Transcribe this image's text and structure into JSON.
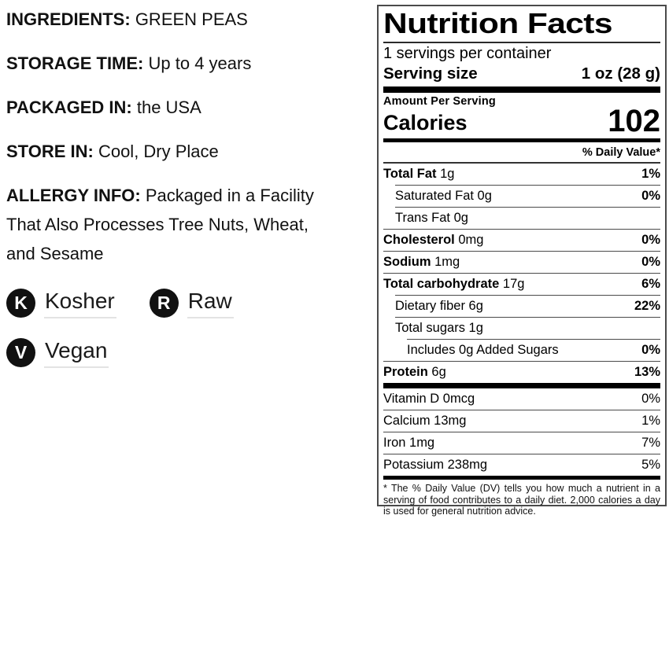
{
  "colors": {
    "text": "#000000",
    "panel_border": "#4a4a4a",
    "rule": "#4a4a4a",
    "thick_bar": "#000000",
    "badge_background": "#111111",
    "badge_letter": "#ffffff",
    "badge_underline": "#e3e3e3"
  },
  "product_info": {
    "fields": [
      {
        "label": "INGREDIENTS:",
        "value": "GREEN PEAS"
      },
      {
        "label": "STORAGE TIME:",
        "value": "Up to 4 years"
      },
      {
        "label": "PACKAGED IN:",
        "value": "the USA"
      },
      {
        "label": "STORE IN:",
        "value": "Cool, Dry Place"
      },
      {
        "label": "ALLERGY INFO:",
        "value": [
          "Packaged in a Facility",
          "That Also Processes Tree Nuts, Wheat,",
          "and Sesame"
        ]
      }
    ],
    "badges": [
      {
        "letter": "K",
        "label": "Kosher"
      },
      {
        "letter": "R",
        "label": "Raw"
      },
      {
        "letter": "V",
        "label": "Vegan"
      }
    ]
  },
  "nutrition": {
    "title": "Nutrition Facts",
    "servings_per_container": "1 servings per container",
    "serving_size_label": "Serving size",
    "serving_size_value": "1 oz (28 g)",
    "amount_per_serving": "Amount Per Serving",
    "calories_label": "Calories",
    "calories_value": "102",
    "daily_value_header": "% Daily Value*",
    "main_rows": [
      {
        "prefix": "Total Fat",
        "prefix_bold": true,
        "suffix": "1g",
        "pct": "1%",
        "pct_bold": true,
        "indent": 0
      },
      {
        "prefix": "Saturated Fat",
        "prefix_bold": false,
        "suffix": "0g",
        "pct": "0%",
        "pct_bold": true,
        "indent": 1
      },
      {
        "prefix": "Trans Fat",
        "prefix_bold": false,
        "suffix": "0g",
        "pct": "",
        "pct_bold": false,
        "indent": 1
      },
      {
        "prefix": "Cholesterol",
        "prefix_bold": true,
        "suffix": "0mg",
        "pct": "0%",
        "pct_bold": true,
        "indent": 0
      },
      {
        "prefix": "Sodium",
        "prefix_bold": true,
        "suffix": "1mg",
        "pct": "0%",
        "pct_bold": true,
        "indent": 0
      },
      {
        "prefix": "Total carbohydrate",
        "prefix_bold": true,
        "suffix": "17g",
        "pct": "6%",
        "pct_bold": true,
        "indent": 0
      },
      {
        "prefix": "Dietary fiber",
        "prefix_bold": false,
        "suffix": "6g",
        "pct": "22%",
        "pct_bold": true,
        "indent": 1
      },
      {
        "prefix": "Total sugars",
        "prefix_bold": false,
        "suffix": "1g",
        "pct": "",
        "pct_bold": false,
        "indent": 1
      },
      {
        "prefix": "Includes 0g Added Sugars",
        "prefix_bold": false,
        "suffix": "",
        "pct": "0%",
        "pct_bold": true,
        "indent": 2
      },
      {
        "prefix": "Protein",
        "prefix_bold": true,
        "suffix": "6g",
        "pct": "13%",
        "pct_bold": true,
        "indent": 0
      }
    ],
    "vitamin_rows": [
      {
        "prefix": "Vitamin D",
        "prefix_bold": false,
        "suffix": "0mcg",
        "pct": "0%",
        "pct_bold": false,
        "indent": 0
      },
      {
        "prefix": "Calcium",
        "prefix_bold": false,
        "suffix": "13mg",
        "pct": "1%",
        "pct_bold": false,
        "indent": 0
      },
      {
        "prefix": "Iron",
        "prefix_bold": false,
        "suffix": "1mg",
        "pct": "7%",
        "pct_bold": false,
        "indent": 0
      },
      {
        "prefix": "Potassium",
        "prefix_bold": false,
        "suffix": "238mg",
        "pct": "5%",
        "pct_bold": false,
        "indent": 0
      }
    ],
    "footnote": "* The % Daily Value (DV) tells you how much a nutrient in a serving of food contributes to a daily diet. 2,000 calories a day is used for general nutrition advice."
  }
}
